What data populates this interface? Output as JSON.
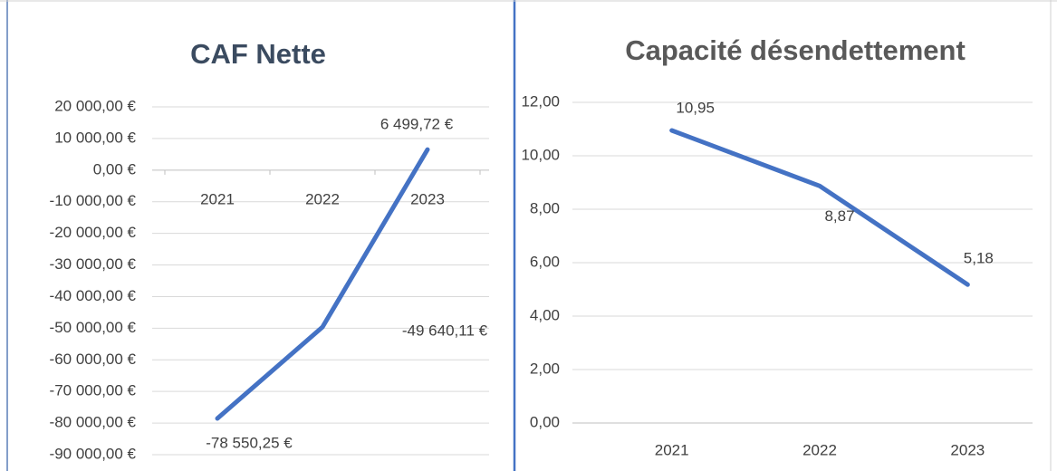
{
  "chart_data": [
    {
      "type": "line",
      "title": "CAF Nette",
      "categories": [
        "2021",
        "2022",
        "2023"
      ],
      "series": [
        {
          "color": "#4472c4",
          "values": [
            -78550.25,
            -49640.11,
            6499.72
          ],
          "value_labels": [
            "-78 550,25 €",
            "-49 640,11 €",
            "6 499,72 €"
          ]
        }
      ],
      "ylim": [
        -90000,
        20000
      ],
      "yticks": [
        {
          "value": -90000,
          "label": "-90 000,00 €"
        },
        {
          "value": -80000,
          "label": "-80 000,00 €"
        },
        {
          "value": -70000,
          "label": "-70 000,00 €"
        },
        {
          "value": -60000,
          "label": "-60 000,00 €"
        },
        {
          "value": -50000,
          "label": "-50 000,00 €"
        },
        {
          "value": -40000,
          "label": "-40 000,00 €"
        },
        {
          "value": -30000,
          "label": "-30 000,00 €"
        },
        {
          "value": -20000,
          "label": "-20 000,00 €"
        },
        {
          "value": -10000,
          "label": "-10 000,00 €"
        },
        {
          "value": 0,
          "label": "0,00 €"
        },
        {
          "value": 10000,
          "label": "10 000,00 €"
        },
        {
          "value": 20000,
          "label": "20 000,00 €"
        }
      ],
      "grid": true
    },
    {
      "type": "line",
      "title": "Capacité désendettement",
      "categories": [
        "2021",
        "2022",
        "2023"
      ],
      "series": [
        {
          "color": "#4472c4",
          "values": [
            10.95,
            8.87,
            5.18
          ],
          "value_labels": [
            "10,95",
            "8,87",
            "5,18"
          ]
        }
      ],
      "ylim": [
        0,
        12
      ],
      "yticks": [
        {
          "value": 0,
          "label": "0,00"
        },
        {
          "value": 2,
          "label": "2,00"
        },
        {
          "value": 4,
          "label": "4,00"
        },
        {
          "value": 6,
          "label": "6,00"
        },
        {
          "value": 8,
          "label": "8,00"
        },
        {
          "value": 10,
          "label": "10,00"
        },
        {
          "value": 12,
          "label": "12,00"
        }
      ],
      "grid": true
    }
  ]
}
